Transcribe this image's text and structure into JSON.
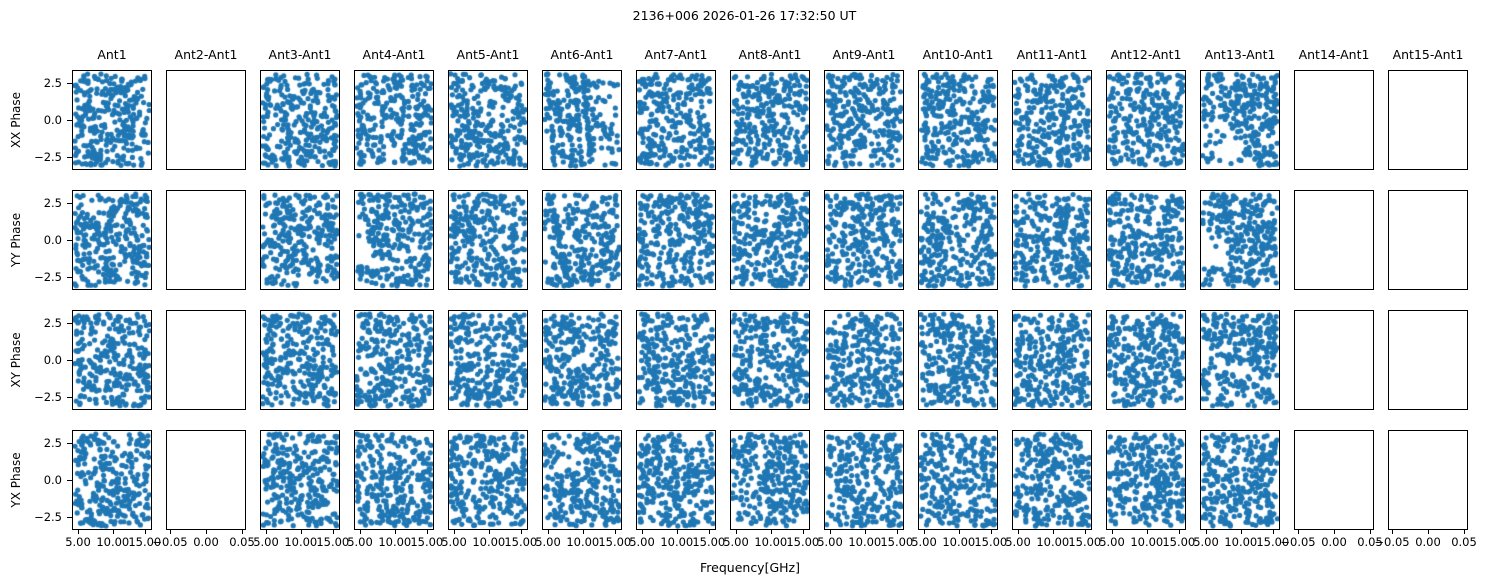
{
  "chart_data": {
    "type": "scatter",
    "title": "2136+006 2026-01-26 17:32:50 UT",
    "xlabel": "Frequency[GHz]",
    "grid": {
      "nrows": 4,
      "ncols": 15
    },
    "row_labels": [
      "XX Phase",
      "YY Phase",
      "XY Phase",
      "YX Phase"
    ],
    "col_labels": [
      "Ant1",
      "Ant2-Ant1",
      "Ant3-Ant1",
      "Ant4-Ant1",
      "Ant5-Ant1",
      "Ant6-Ant1",
      "Ant7-Ant1",
      "Ant8-Ant1",
      "Ant9-Ant1",
      "Ant10-Ant1",
      "Ant11-Ant1",
      "Ant12-Ant1",
      "Ant13-Ant1",
      "Ant14-Ant1",
      "Ant15-Ant1"
    ],
    "empty_columns": [
      "Ant2-Ant1",
      "Ant14-Ant1",
      "Ant15-Ant1"
    ],
    "y_ticks": [
      "2.5",
      "0.0",
      "−2.5"
    ],
    "x_ticks_filled": [
      "5.00",
      "10.00",
      "15.00"
    ],
    "x_ticks_empty": [
      "−0.05",
      "0.00",
      "0.05"
    ],
    "ylim": [
      -3.4,
      3.4
    ],
    "xlim_filled_ghz": [
      4.3,
      16.2
    ],
    "xlim_empty": [
      -0.055,
      0.055
    ],
    "x_data_range_ghz": [
      4.5,
      16.0
    ],
    "y_data_range_rad": [
      -3.14,
      3.14
    ],
    "points_per_subplot": 295,
    "marker_color": "#1f77b4",
    "legend": "none",
    "grid_lines": "off",
    "patterns": {
      "XX Phase.Ant4-Ant1": "diagonal-gap",
      "XX Phase.Ant6-Ant1": "diagonal-stripes",
      "XX Phase.Ant13-Ant1": "sparse-lower-left",
      "YY Phase.Ant4-Ant1": "sparse-left-wedge",
      "YY Phase.Ant6-Ant1": "left-diagonal-stripe",
      "YY Phase.Ant13-Ant1": "gap-left-middle",
      "XY Phase.Ant13-Ant1": "diagonal-gap-lower-right"
    },
    "note": "Dense pseudo-random wrapped phases in [−π, π] vs frequency 4.5–16 GHz; baselines Ant2-Ant1, Ant14-Ant1 and Ant15-Ant1 have no data."
  }
}
